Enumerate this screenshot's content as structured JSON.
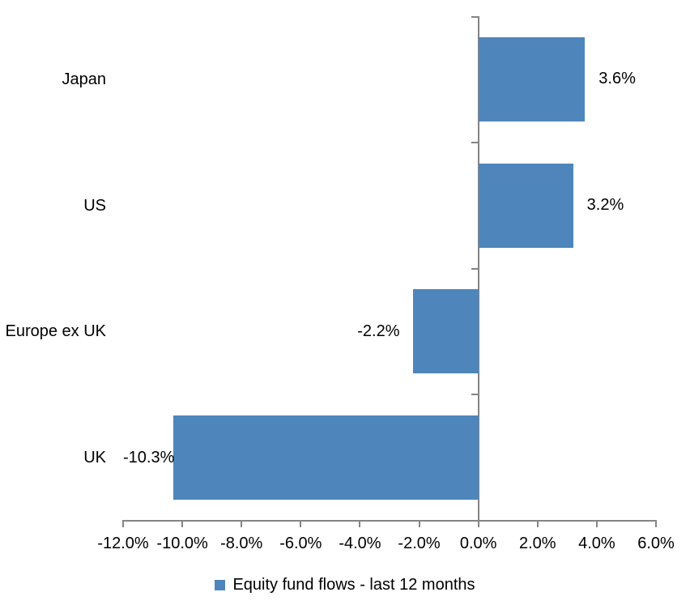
{
  "chart_data": {
    "type": "bar",
    "orientation": "horizontal",
    "title": "",
    "categories": [
      "Japan",
      "US",
      "Europe ex UK",
      "UK"
    ],
    "values": [
      3.6,
      3.2,
      -2.2,
      -10.3
    ],
    "value_labels": [
      "3.6%",
      "3.2%",
      "-2.2%",
      "-10.3%"
    ],
    "series_name": "Equity fund flows - last 12 months",
    "xlabel": "",
    "ylabel": "",
    "xlim": [
      -12,
      6
    ],
    "x_ticks": [
      -12,
      -10,
      -8,
      -6,
      -4,
      -2,
      0,
      2,
      4,
      6
    ],
    "x_tick_labels": [
      "-12.0%",
      "-10.0%",
      "-8.0%",
      "-6.0%",
      "-4.0%",
      "-2.0%",
      "0.0%",
      "2.0%",
      "4.0%",
      "6.0%"
    ],
    "grid": false,
    "legend_position": "bottom",
    "bar_color": "#4E86BC",
    "axis_color": "#848484",
    "text_color": "#000000"
  },
  "legend": {
    "label": "Equity fund flows - last 12 months"
  }
}
